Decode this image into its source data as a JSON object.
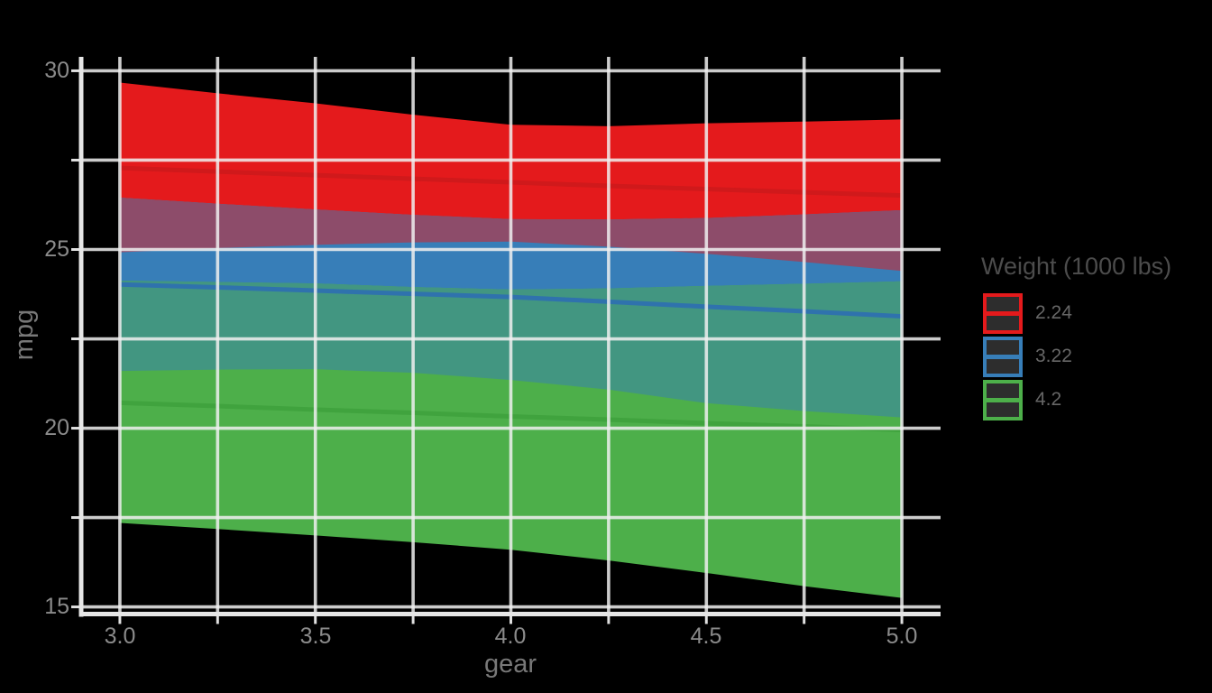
{
  "app": {
    "background_color": "#000000"
  },
  "chart_data": {
    "type": "area",
    "title": "",
    "xlabel": "gear",
    "ylabel": "mpg",
    "grid": true,
    "axes": {
      "x": {
        "label": "gear",
        "ticks": [
          "3.0",
          "3.5",
          "4.0",
          "4.5",
          "5.0"
        ],
        "tick_values": [
          3.0,
          3.5,
          4.0,
          4.5,
          5.0
        ],
        "breaks_all": [
          3.0,
          3.25,
          3.5,
          3.75,
          4.0,
          4.25,
          4.5,
          4.75,
          5.0
        ],
        "range": [
          2.901,
          5.099
        ]
      },
      "y": {
        "label": "mpg",
        "ticks": [
          "30",
          "25",
          "20",
          "15"
        ],
        "tick_values": [
          30,
          25,
          20,
          15
        ],
        "breaks_all": [
          30,
          27.5,
          25,
          22.5,
          20,
          17.5,
          15
        ],
        "range": [
          14.8,
          30.39
        ]
      }
    },
    "legend": {
      "title": "Weight (1000 lbs)",
      "position": "right",
      "entries": [
        {
          "label": "2.24",
          "color": "#e41a1c"
        },
        {
          "label": "3.22",
          "color": "#377eb8"
        },
        {
          "label": "4.2",
          "color": "#4daf4a"
        }
      ]
    },
    "x": [
      3.0,
      3.25,
      3.5,
      3.75,
      4.0,
      4.25,
      4.5,
      4.75,
      5.0
    ],
    "series": [
      {
        "name": "2.24",
        "ribbon_color": "#e41a1c",
        "line_color": "#d0191b",
        "fit": [
          27.28,
          27.18,
          27.08,
          26.98,
          26.88,
          26.78,
          26.69,
          26.6,
          26.51
        ],
        "upper": [
          29.67,
          29.37,
          29.09,
          28.77,
          28.49,
          28.45,
          28.53,
          28.58,
          28.64
        ],
        "lower": [
          24.92,
          25.04,
          25.13,
          25.2,
          25.22,
          25.08,
          24.88,
          24.65,
          24.4
        ]
      },
      {
        "name": "3.22",
        "ribbon_color": "#377eb8",
        "line_color": "#2f72ad",
        "fit": [
          24.02,
          23.94,
          23.85,
          23.76,
          23.67,
          23.54,
          23.4,
          23.27,
          23.13
        ],
        "upper": [
          26.45,
          26.28,
          26.12,
          25.97,
          25.85,
          25.84,
          25.88,
          25.98,
          26.1
        ],
        "lower": [
          21.6,
          21.64,
          21.65,
          21.55,
          21.35,
          21.08,
          20.7,
          20.48,
          20.3
        ]
      },
      {
        "name": "4.2",
        "ribbon_color": "#4daf4a",
        "line_color": "#40a33e",
        "fit": [
          20.71,
          20.62,
          20.52,
          20.43,
          20.33,
          20.24,
          20.14,
          20.05,
          19.95
        ],
        "upper": [
          24.13,
          24.09,
          24.05,
          23.95,
          23.88,
          23.91,
          23.98,
          24.04,
          24.11
        ],
        "lower": [
          17.35,
          17.18,
          17.0,
          16.81,
          16.6,
          16.3,
          15.95,
          15.58,
          15.25
        ]
      }
    ],
    "overlaps": [
      {
        "upper_series": 1,
        "lower_series": 0,
        "color": "#8d4c6a",
        "between": [
          "2.24",
          "3.22"
        ]
      },
      {
        "upper_series": 2,
        "lower_series": 1,
        "color": "#429681",
        "between": [
          "3.22",
          "4.2"
        ]
      }
    ],
    "theme": {
      "grid_color": "#f0f0f0",
      "axis_color": "#e6e6e6",
      "tick_color": "#e0e0e0",
      "tick_label_color": "#8b8b8b",
      "axis_title_color": "#787878",
      "legend_title_color": "#4c4c4c",
      "legend_label_color": "#666666",
      "legend_key_fill": "#2d2d2d"
    }
  }
}
